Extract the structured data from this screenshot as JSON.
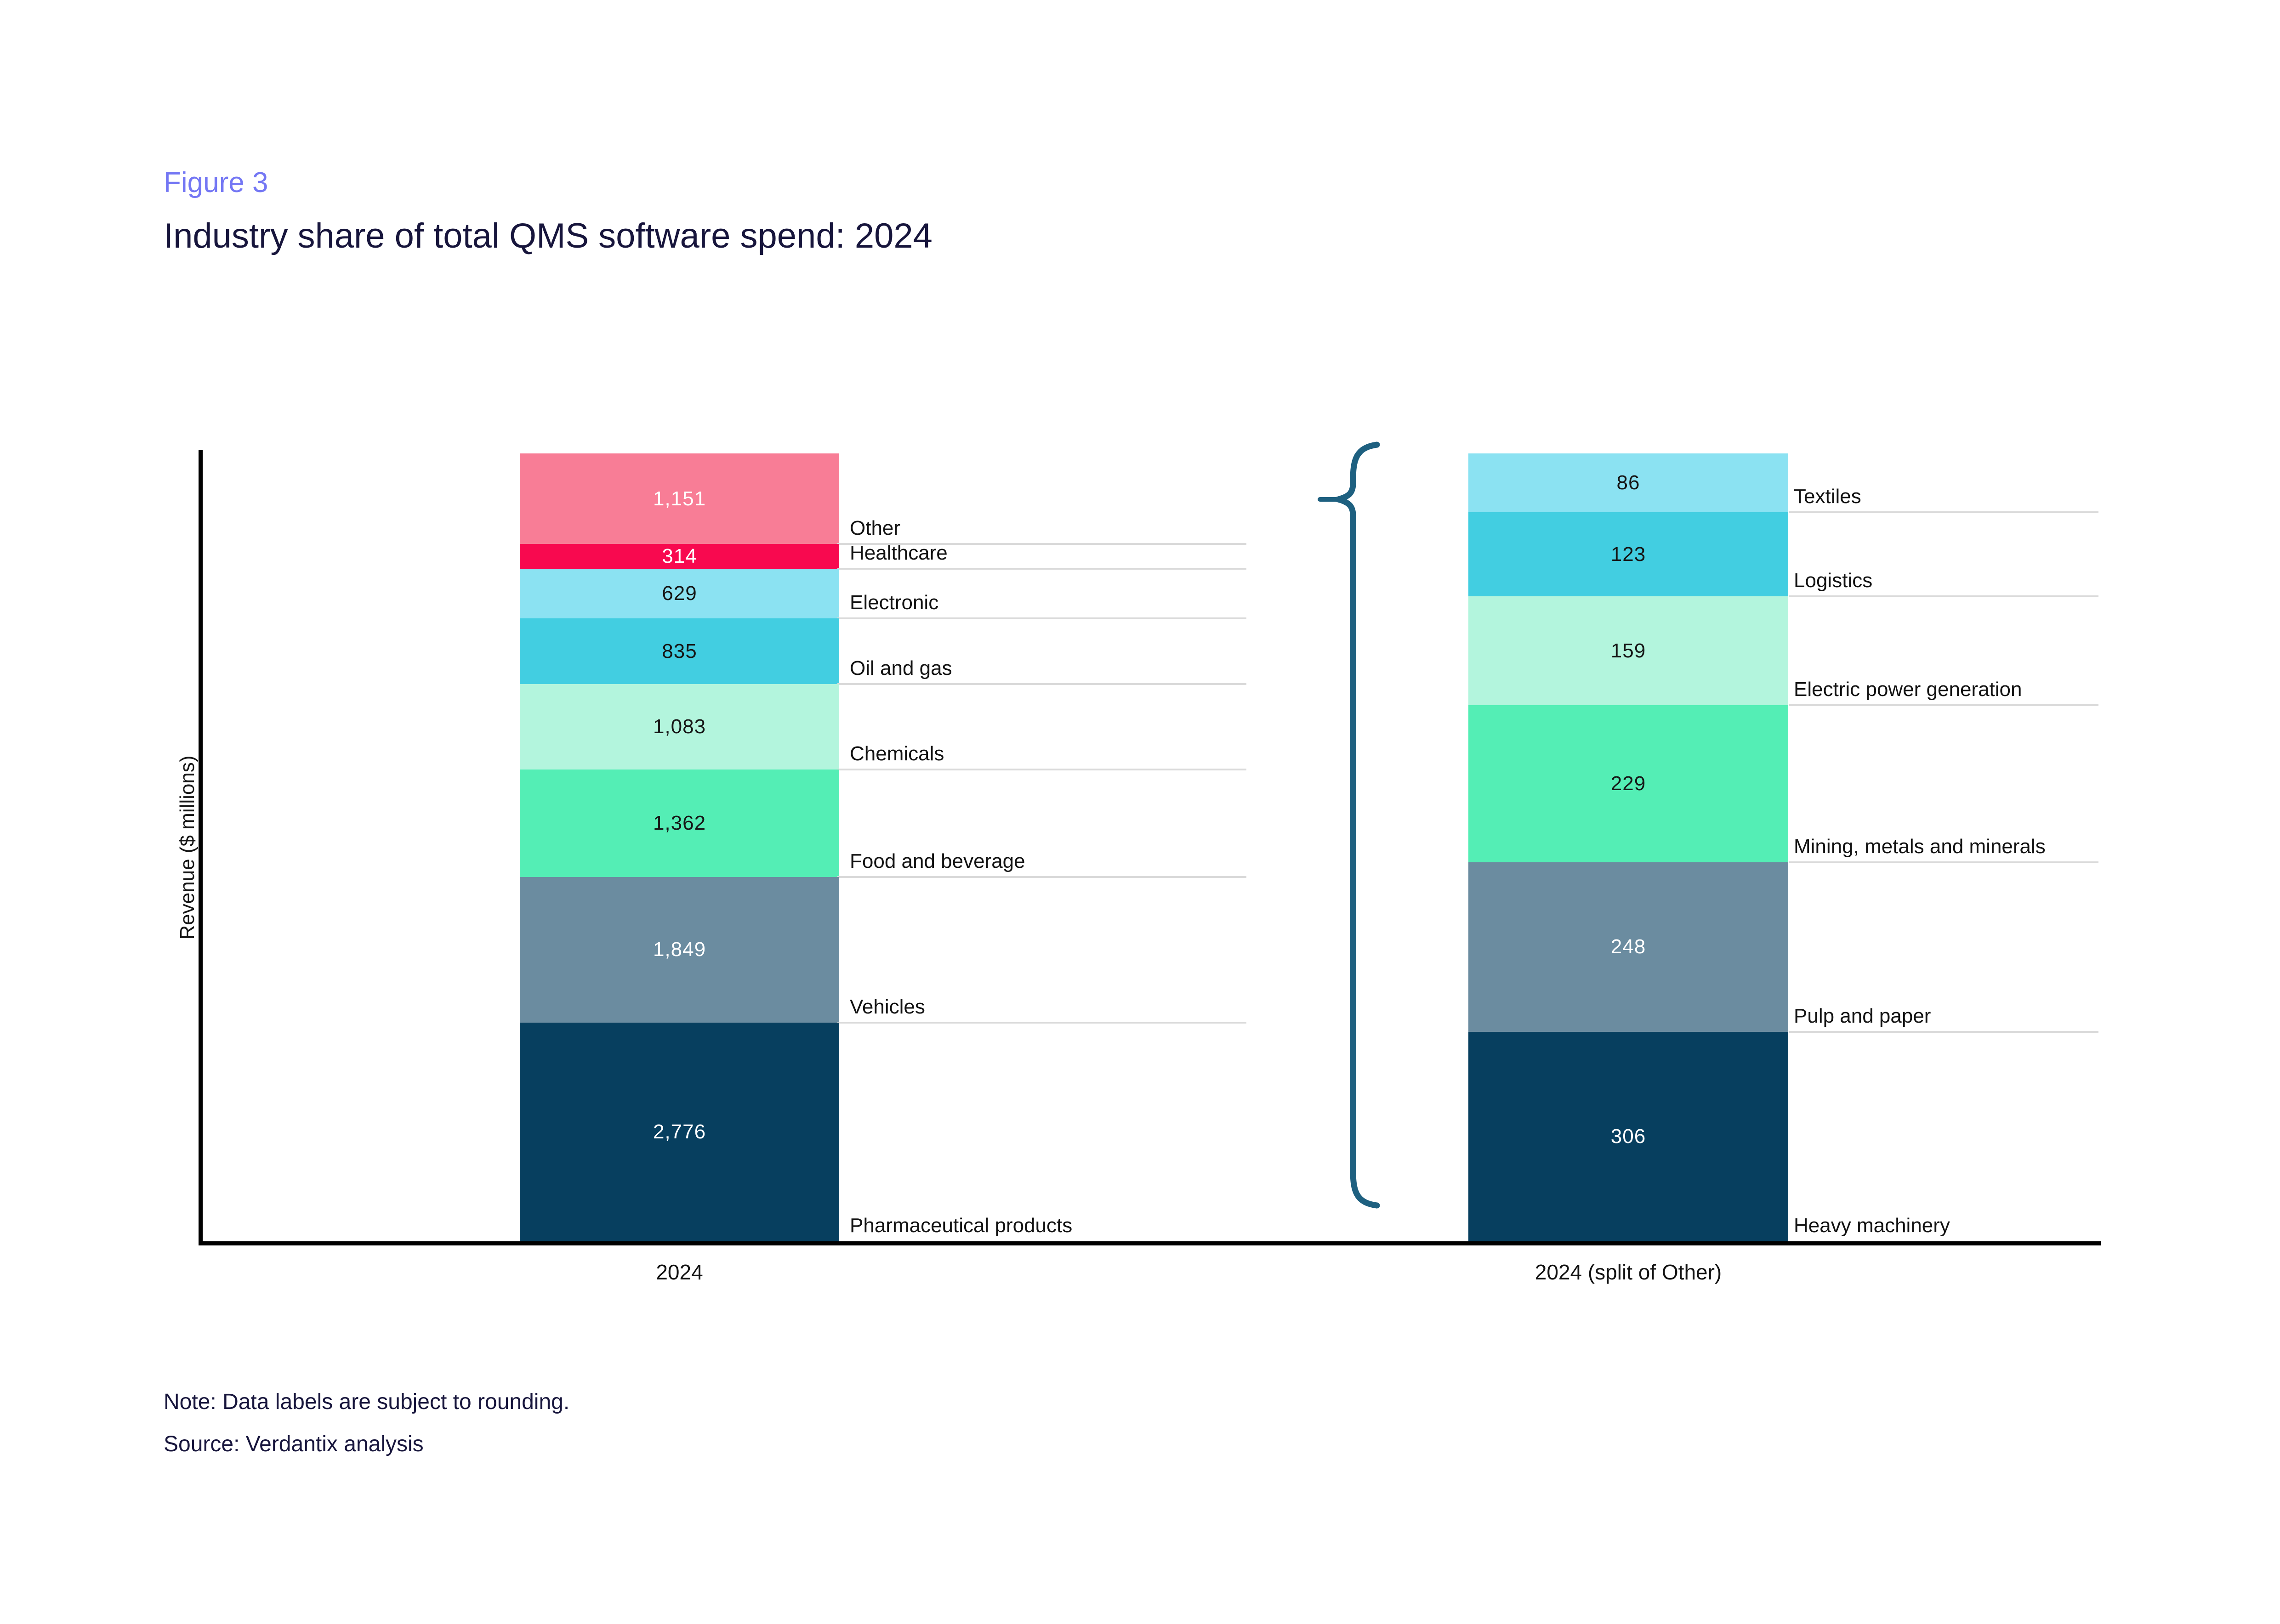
{
  "figure": {
    "label": "Figure 3",
    "title": "Industry share of total QMS software spend: 2024"
  },
  "footer": {
    "note": "Note: Data labels are subject to rounding.",
    "source": "Source: Verdantix analysis"
  },
  "colors": {
    "figure_label": "#7477F4",
    "title": "#17153C",
    "note_text": "#17153C",
    "axis": "#000000",
    "category_line": "#DADADA",
    "category_text": "#121212",
    "brace": "#1E6080",
    "background": "#FFFFFF"
  },
  "chart_data": {
    "type": "bar",
    "stacked": true,
    "title": "Industry share of total QMS software spend: 2024",
    "xlabel": "",
    "ylabel": "Revenue ($ millions)",
    "legend": "none",
    "grid": false,
    "categories": [
      "2024",
      "2024 (split of Other)"
    ],
    "bars": [
      {
        "tick": "2024",
        "total": 9999,
        "segments_top_to_bottom": [
          {
            "label": "Other",
            "value": 1151,
            "display": "1,151",
            "color": "#F87D96",
            "value_color": "#FFFFFF"
          },
          {
            "label": "Healthcare",
            "value": 314,
            "display": "314",
            "color": "#F8094F",
            "value_color": "#FFFFFF"
          },
          {
            "label": "Electronic",
            "value": 629,
            "display": "629",
            "color": "#8BE2F2",
            "value_color": "#161616"
          },
          {
            "label": "Oil and gas",
            "value": 835,
            "display": "835",
            "color": "#42CEE1",
            "value_color": "#161616"
          },
          {
            "label": "Chemicals",
            "value": 1083,
            "display": "1,083",
            "color": "#B3F5DD",
            "value_color": "#161616"
          },
          {
            "label": "Food and beverage",
            "value": 1362,
            "display": "1,362",
            "color": "#54EEB5",
            "value_color": "#161616"
          },
          {
            "label": "Vehicles",
            "value": 1849,
            "display": "1,849",
            "color": "#6B8CA0",
            "value_color": "#FFFFFF"
          },
          {
            "label": "Pharmaceutical products",
            "value": 2776,
            "display": "2,776",
            "color": "#073F5F",
            "value_color": "#FFFFFF"
          }
        ]
      },
      {
        "tick": "2024 (split of Other)",
        "total": 1151,
        "segments_top_to_bottom": [
          {
            "label": "Textiles",
            "value": 86,
            "display": "86",
            "color": "#8BE2F2",
            "value_color": "#161616"
          },
          {
            "label": "Logistics",
            "value": 123,
            "display": "123",
            "color": "#42CEE1",
            "value_color": "#161616"
          },
          {
            "label": "Electric power generation",
            "value": 159,
            "display": "159",
            "color": "#B3F5DD",
            "value_color": "#161616"
          },
          {
            "label": "Mining, metals and minerals",
            "value": 229,
            "display": "229",
            "color": "#54EEB5",
            "value_color": "#161616"
          },
          {
            "label": "Pulp and paper",
            "value": 248,
            "display": "248",
            "color": "#6B8CA0",
            "value_color": "#FFFFFF"
          },
          {
            "label": "Heavy machinery",
            "value": 306,
            "display": "306",
            "color": "#073F5F",
            "value_color": "#FFFFFF"
          }
        ]
      }
    ],
    "annotations": {
      "brace_meaning": "split of Other"
    }
  }
}
